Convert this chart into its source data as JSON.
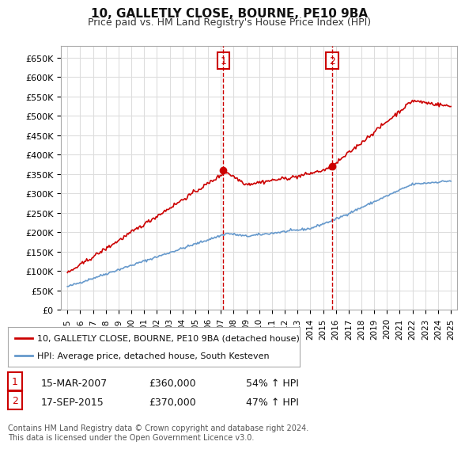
{
  "title": "10, GALLETLY CLOSE, BOURNE, PE10 9BA",
  "subtitle": "Price paid vs. HM Land Registry's House Price Index (HPI)",
  "property_label": "10, GALLETLY CLOSE, BOURNE, PE10 9BA (detached house)",
  "hpi_label": "HPI: Average price, detached house, South Kesteven",
  "annotation1": {
    "num": "1",
    "date": "15-MAR-2007",
    "price": "£360,000",
    "pct": "54% ↑ HPI"
  },
  "annotation2": {
    "num": "2",
    "date": "17-SEP-2015",
    "price": "£370,000",
    "pct": "47% ↑ HPI"
  },
  "vline1_x": 2007.2,
  "vline2_x": 2015.72,
  "sale1_x": 2007.2,
  "sale1_y": 360000,
  "sale2_x": 2015.72,
  "sale2_y": 370000,
  "ylim_min": 0,
  "ylim_max": 680000,
  "xlim_min": 1994.5,
  "xlim_max": 2025.5,
  "property_color": "#cc0000",
  "hpi_color": "#6699cc",
  "background_color": "#ffffff",
  "grid_color": "#dddddd",
  "footer": "Contains HM Land Registry data © Crown copyright and database right 2024.\nThis data is licensed under the Open Government Licence v3.0.",
  "yticks": [
    0,
    50000,
    100000,
    150000,
    200000,
    250000,
    300000,
    350000,
    400000,
    450000,
    500000,
    550000,
    600000,
    650000
  ],
  "ytick_labels": [
    "£0",
    "£50K",
    "£100K",
    "£150K",
    "£200K",
    "£250K",
    "£300K",
    "£350K",
    "£400K",
    "£450K",
    "£500K",
    "£550K",
    "£600K",
    "£650K"
  ],
  "xtick_years": [
    1995,
    1996,
    1997,
    1998,
    1999,
    2000,
    2001,
    2002,
    2003,
    2004,
    2005,
    2006,
    2007,
    2008,
    2009,
    2010,
    2011,
    2012,
    2013,
    2014,
    2015,
    2016,
    2017,
    2018,
    2019,
    2020,
    2021,
    2022,
    2023,
    2024,
    2025
  ]
}
